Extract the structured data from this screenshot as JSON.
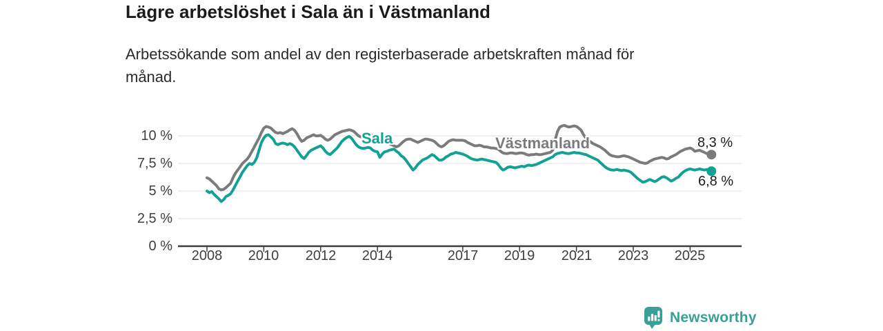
{
  "header": {
    "title": "Lägre arbetslöshet i Sala än i Västmanland",
    "subtitle": "Arbetssökande som andel av den registerbaserade arbetskraften månad för\nmånad."
  },
  "chart_data": {
    "type": "line",
    "title": "Lägre arbetslöshet i Sala än i Västmanland",
    "subtitle": "Arbetssökande som andel av den registerbaserade arbetskraften månad för månad.",
    "unit": "%",
    "grid": true,
    "legend_position": "inline-labels",
    "x_start": "2008-01",
    "x_end": "2025-10",
    "points_per_year": 12,
    "ylim": [
      0,
      11.5
    ],
    "y_ticks": [
      0,
      2.5,
      5,
      7.5,
      10
    ],
    "y_tick_labels": [
      "0 %",
      "2,5 %",
      "5 %",
      "7,5 %",
      "10 %"
    ],
    "x_ticks": [
      2008,
      2010,
      2012,
      2014,
      2017,
      2019,
      2021,
      2023,
      2025
    ],
    "x_tick_labels": [
      "2008",
      "2010",
      "2012",
      "2014",
      "2017",
      "2019",
      "2021",
      "2023",
      "2025"
    ],
    "series": [
      {
        "name": "Västmanland",
        "color": "#7b7b7b",
        "end_label": "8,3 %",
        "end_value": 8.3,
        "values": [
          6.2,
          6.1,
          5.9,
          5.7,
          5.5,
          5.2,
          5.1,
          5.15,
          5.3,
          5.5,
          5.7,
          6.2,
          6.6,
          6.9,
          7.2,
          7.5,
          7.7,
          7.9,
          8.2,
          8.6,
          9.0,
          9.4,
          9.8,
          10.3,
          10.7,
          10.85,
          10.8,
          10.7,
          10.5,
          10.3,
          10.25,
          10.3,
          10.2,
          10.3,
          10.4,
          10.55,
          10.65,
          10.5,
          10.2,
          9.8,
          9.5,
          9.6,
          9.8,
          9.9,
          10.0,
          10.1,
          10.0,
          10.0,
          10.05,
          9.9,
          9.7,
          9.6,
          9.7,
          9.9,
          10.1,
          10.2,
          10.3,
          10.4,
          10.45,
          10.5,
          10.55,
          10.5,
          10.4,
          10.2,
          10.0,
          9.9,
          9.8,
          9.9,
          10.0,
          10.1,
          10.05,
          9.9,
          9.8,
          9.7,
          9.6,
          9.5,
          9.4,
          9.3,
          9.2,
          9.1,
          9.0,
          9.1,
          9.3,
          9.5,
          9.65,
          9.7,
          9.7,
          9.6,
          9.5,
          9.4,
          9.5,
          9.6,
          9.7,
          9.7,
          9.65,
          9.6,
          9.5,
          9.3,
          9.1,
          9.0,
          9.1,
          9.3,
          9.5,
          9.6,
          9.65,
          9.6,
          9.6,
          9.6,
          9.6,
          9.55,
          9.4,
          9.3,
          9.2,
          9.1,
          9.1,
          9.15,
          9.1,
          9.0,
          9.0,
          8.95,
          8.9,
          8.9,
          8.85,
          8.8,
          8.6,
          8.45,
          8.4,
          8.4,
          8.45,
          8.45,
          8.4,
          8.4,
          8.45,
          8.45,
          8.4,
          8.3,
          8.25,
          8.3,
          8.3,
          8.35,
          8.3,
          8.3,
          8.35,
          8.4,
          8.45,
          8.5,
          8.7,
          9.6,
          10.4,
          10.8,
          10.9,
          10.95,
          10.85,
          10.8,
          10.85,
          10.9,
          10.85,
          10.7,
          10.5,
          10.1,
          9.8,
          9.6,
          9.45,
          9.3,
          9.2,
          9.1,
          9.0,
          8.85,
          8.7,
          8.5,
          8.3,
          8.2,
          8.15,
          8.1,
          8.1,
          8.15,
          8.2,
          8.15,
          8.1,
          8.0,
          7.9,
          7.8,
          7.7,
          7.6,
          7.55,
          7.5,
          7.55,
          7.7,
          7.8,
          7.9,
          7.95,
          8.0,
          8.05,
          8.0,
          7.9,
          7.95,
          8.1,
          8.2,
          8.3,
          8.45,
          8.6,
          8.7,
          8.8,
          8.85,
          8.9,
          8.8,
          8.6,
          8.65,
          8.7,
          8.6,
          8.5,
          8.4,
          8.35,
          8.3
        ]
      },
      {
        "name": "Sala",
        "color": "#14a195",
        "end_label": "6,8 %",
        "end_value": 6.8,
        "values": [
          5.0,
          4.85,
          4.95,
          4.7,
          4.5,
          4.3,
          4.05,
          4.2,
          4.5,
          4.6,
          4.75,
          5.1,
          5.5,
          5.9,
          6.3,
          6.7,
          7.0,
          7.3,
          7.5,
          7.4,
          7.6,
          8.0,
          8.7,
          9.4,
          9.8,
          10.05,
          10.1,
          9.9,
          9.7,
          9.3,
          9.2,
          9.3,
          9.35,
          9.3,
          9.2,
          9.3,
          9.2,
          9.0,
          8.7,
          8.4,
          8.1,
          7.95,
          8.2,
          8.5,
          8.7,
          8.8,
          8.9,
          9.0,
          9.1,
          8.9,
          8.6,
          8.4,
          8.3,
          8.5,
          8.7,
          8.9,
          9.2,
          9.5,
          9.7,
          9.85,
          9.95,
          9.8,
          9.5,
          9.2,
          9.0,
          8.9,
          8.85,
          8.9,
          8.95,
          8.9,
          8.7,
          8.6,
          8.55,
          8.05,
          8.35,
          8.55,
          8.6,
          8.7,
          8.75,
          8.8,
          8.6,
          8.45,
          8.2,
          8.05,
          7.8,
          7.5,
          7.2,
          6.9,
          7.1,
          7.4,
          7.6,
          7.8,
          7.9,
          8.0,
          8.15,
          8.3,
          8.2,
          8.0,
          7.8,
          7.8,
          7.9,
          8.1,
          8.2,
          8.35,
          8.4,
          8.5,
          8.45,
          8.4,
          8.35,
          8.25,
          8.15,
          8.0,
          7.9,
          7.85,
          7.8,
          7.85,
          7.9,
          7.85,
          7.8,
          7.75,
          7.7,
          7.65,
          7.6,
          7.4,
          7.1,
          6.9,
          7.0,
          7.15,
          7.2,
          7.15,
          7.1,
          7.15,
          7.2,
          7.25,
          7.2,
          7.3,
          7.35,
          7.3,
          7.35,
          7.4,
          7.5,
          7.6,
          7.7,
          7.8,
          7.9,
          8.0,
          8.1,
          8.3,
          8.4,
          8.45,
          8.5,
          8.45,
          8.4,
          8.4,
          8.45,
          8.5,
          8.45,
          8.45,
          8.4,
          8.35,
          8.3,
          8.2,
          8.1,
          8.0,
          7.9,
          7.8,
          7.6,
          7.4,
          7.2,
          7.05,
          6.95,
          6.9,
          6.9,
          6.95,
          6.9,
          6.85,
          6.9,
          6.85,
          6.8,
          6.7,
          6.5,
          6.3,
          6.1,
          5.95,
          5.8,
          5.85,
          5.95,
          6.05,
          5.95,
          5.85,
          5.95,
          6.1,
          6.25,
          6.3,
          6.2,
          6.05,
          5.9,
          6.0,
          6.15,
          6.25,
          6.5,
          6.7,
          6.85,
          6.95,
          7.0,
          6.95,
          6.9,
          6.95,
          7.0,
          6.95,
          6.9,
          6.95,
          6.9,
          6.8
        ]
      }
    ],
    "colors": {
      "grid": "#e2e2e2",
      "axis": "#3c3c3c",
      "background": "#ffffff"
    }
  },
  "footer": {
    "brand": "Newsworthy",
    "brand_color": "#3b9e97"
  }
}
